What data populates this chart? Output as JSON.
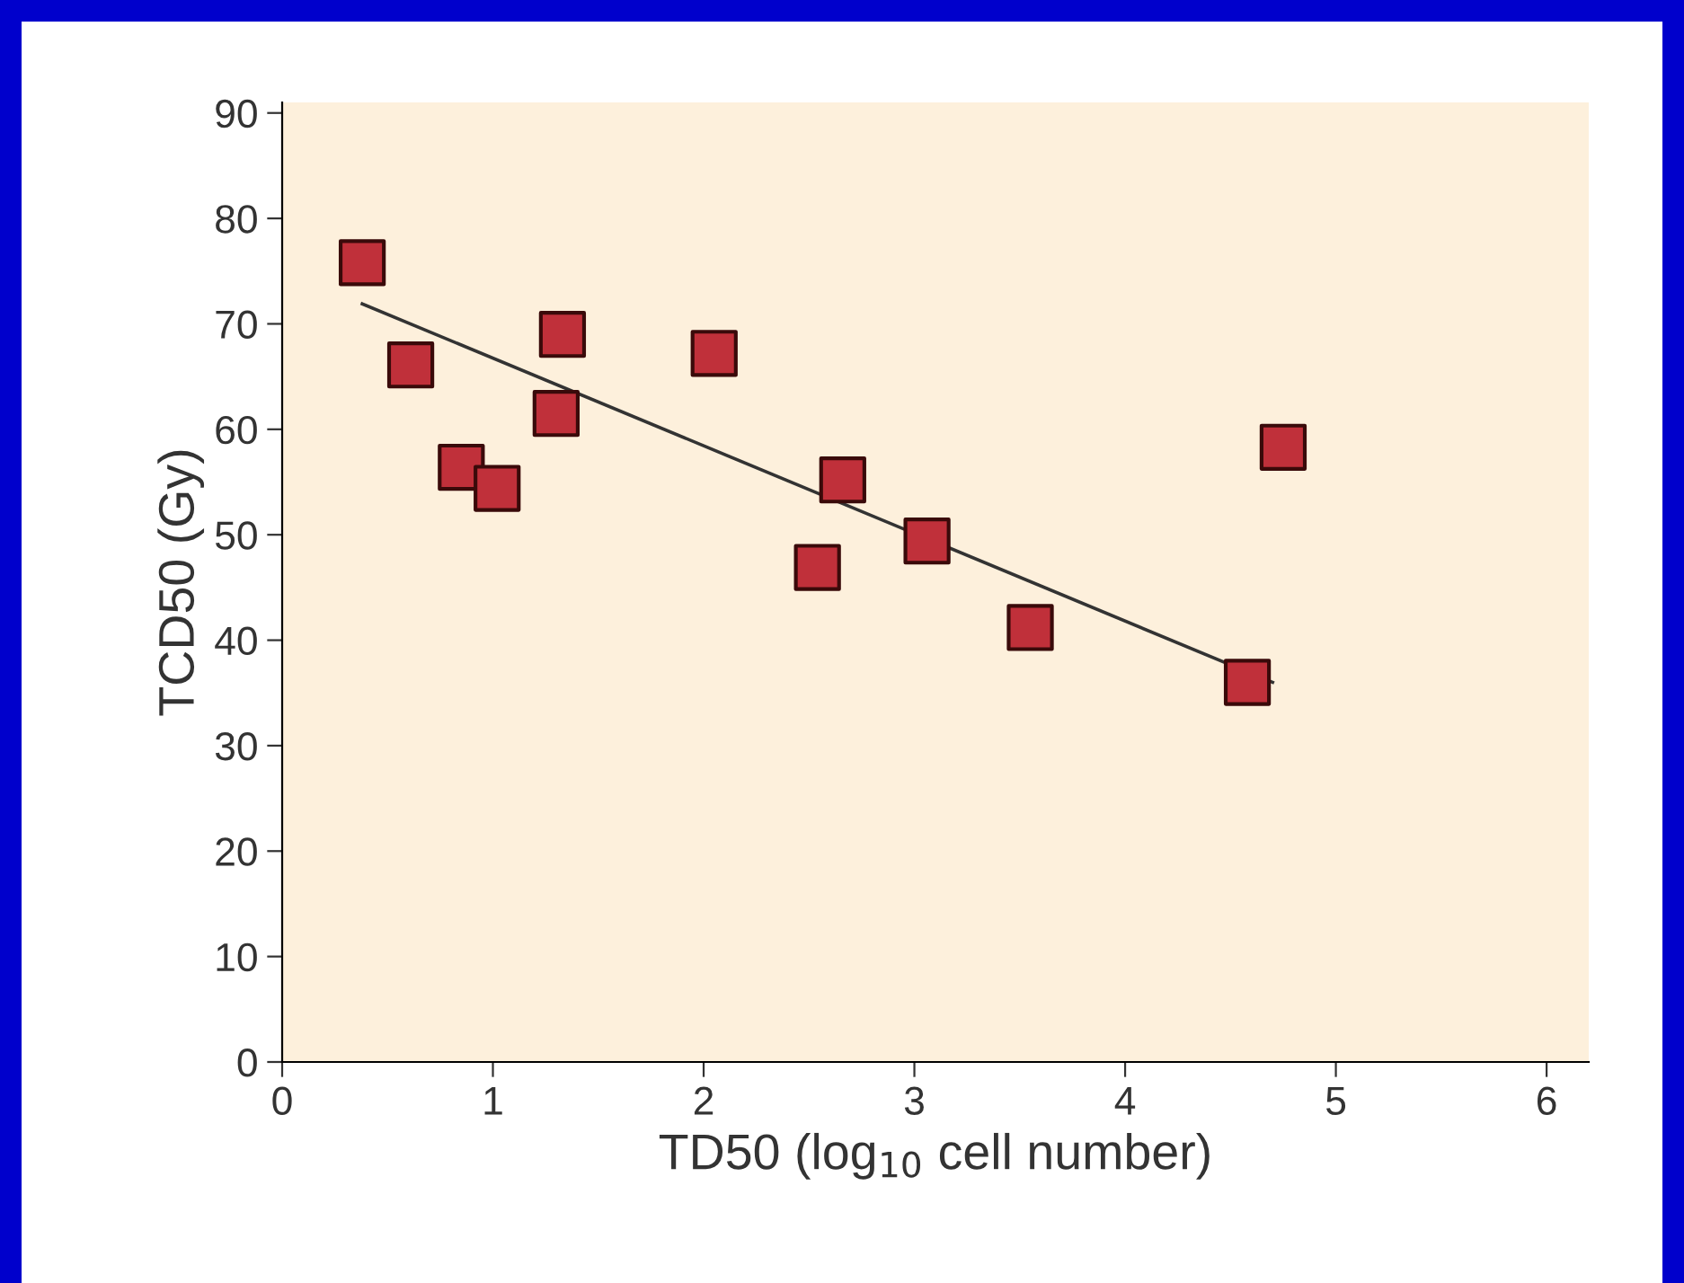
{
  "chart_data": {
    "type": "scatter",
    "xlabel": "TD50 (log$_{10}$ cell number)",
    "ylabel": "TCD50 (Gy)",
    "series": [
      {
        "color": "#c0303a",
        "marker": "square",
        "x": [
          0.38,
          0.61,
          0.85,
          1.02,
          1.3,
          1.33,
          2.05,
          2.54,
          2.66,
          3.06,
          3.55,
          4.58,
          4.75
        ],
        "values": [
          75.8,
          66.1,
          56.4,
          54.4,
          61.5,
          69.0,
          67.2,
          46.9,
          55.2,
          49.4,
          41.2,
          36.0,
          58.3
        ]
      },
      {
        "type": "line",
        "color": "#333333",
        "marker": "none",
        "line_style": "solid",
        "x": [
          0.38,
          4.7
        ],
        "values": [
          71.9,
          36.0
        ]
      }
    ],
    "xlim": [
      0,
      6.2
    ],
    "ylim": [
      0,
      91
    ],
    "xticks": [
      0,
      1,
      2,
      3,
      4,
      5,
      6
    ],
    "yticks": [
      0,
      10,
      20,
      30,
      40,
      50,
      60,
      70,
      80,
      90
    ],
    "grid": false,
    "legend": false
  }
}
